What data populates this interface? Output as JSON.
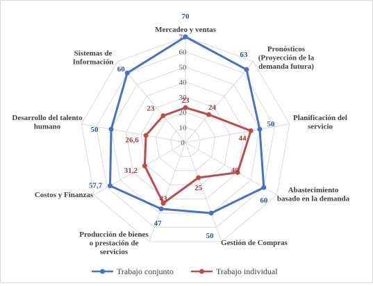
{
  "chart_data": {
    "type": "radar",
    "title": "",
    "categories": [
      [
        "Mercadeo y ventas"
      ],
      [
        "Pronósticos",
        "(Proyección de la",
        "demanda futura)"
      ],
      [
        "Planificación del",
        "servicio"
      ],
      [
        "Abastecimiento",
        "basado en la demanda"
      ],
      [
        "Gestión de Compras"
      ],
      [
        "Producción de bienes",
        "o prestación de",
        "servicios"
      ],
      [
        "Costos y Finanzas"
      ],
      [
        "Desarrollo del talento",
        "humano"
      ],
      [
        "Sistemas de",
        "Información"
      ]
    ],
    "r_ticks": [
      "0",
      "10",
      "20",
      "30",
      "40",
      "50",
      "60",
      "70"
    ],
    "rlim": [
      0,
      70
    ],
    "grid": true,
    "legend_position": "bottom",
    "series": [
      {
        "name": "Trabajo conjunto",
        "color": "#4472c4",
        "values": [
          70,
          63,
          50,
          60,
          50,
          47,
          57.7,
          50,
          60
        ],
        "labels": [
          "70",
          "63",
          "50",
          "60",
          "50",
          "47",
          "57,7",
          "50",
          "60"
        ]
      },
      {
        "name": "Trabajo individual",
        "color": "#be4b48",
        "values": [
          23,
          24,
          44,
          40,
          25,
          43,
          31.2,
          26.6,
          23
        ],
        "labels": [
          "23",
          "24",
          "44",
          "40",
          "25",
          "43",
          "31,2",
          "26,6",
          "23"
        ]
      }
    ]
  }
}
